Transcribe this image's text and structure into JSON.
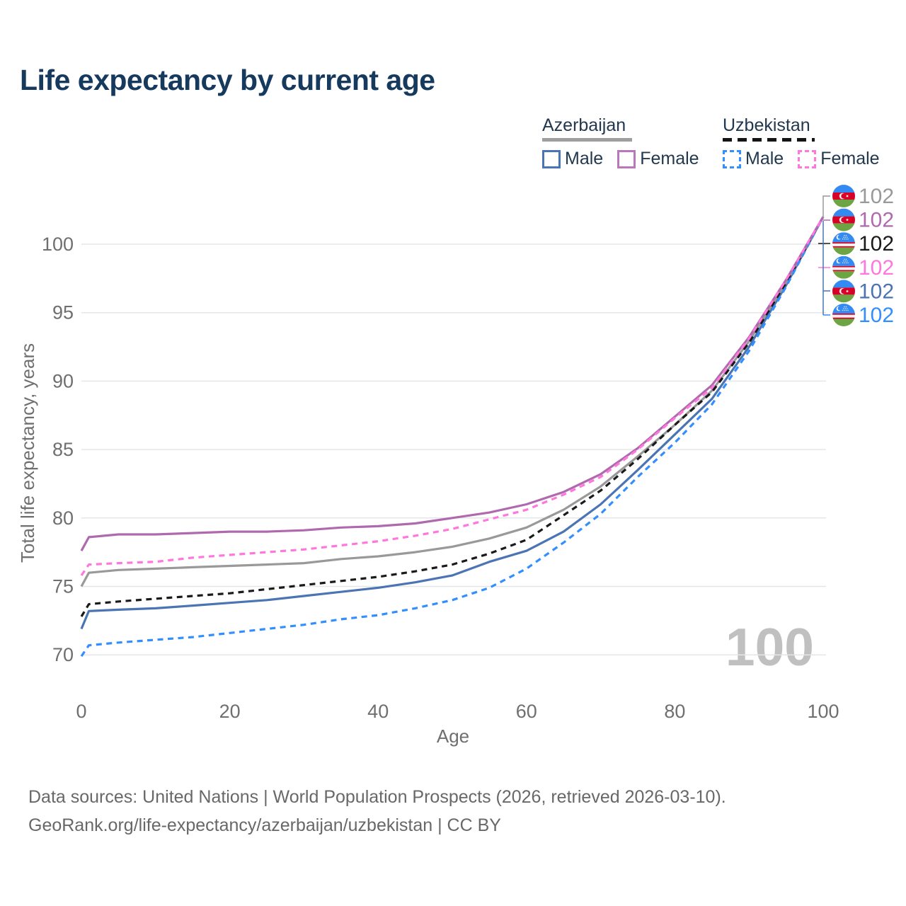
{
  "title": "Life expectancy by current age",
  "legend": {
    "groups": [
      {
        "title": "Azerbaijan",
        "underline_style": "solid",
        "underline_color": "#9e9e9e",
        "items": [
          {
            "label": "Male",
            "color": "#4a74b4",
            "dash": "solid"
          },
          {
            "label": "Female",
            "color": "#bb77bb",
            "dash": "solid"
          }
        ]
      },
      {
        "title": "Uzbekistan",
        "underline_style": "dashed",
        "underline_color": "#141414",
        "items": [
          {
            "label": "Male",
            "color": "#338eff",
            "dash": "dashed"
          },
          {
            "label": "Female",
            "color": "#ff77dd",
            "dash": "dashed"
          }
        ]
      }
    ]
  },
  "chart_data": {
    "type": "line",
    "title": "Life expectancy by current age",
    "xlabel": "Age",
    "ylabel": "Total life expectancy, years",
    "xlim": [
      0,
      100
    ],
    "ylim": [
      68.5,
      103
    ],
    "x_ticks": [
      0,
      20,
      40,
      60,
      80,
      100
    ],
    "y_ticks": [
      70,
      75,
      80,
      85,
      90,
      95,
      100
    ],
    "grid": "horizontal",
    "age_indicator": "100",
    "ages": [
      0,
      1,
      5,
      10,
      15,
      20,
      25,
      30,
      35,
      40,
      45,
      50,
      55,
      60,
      65,
      70,
      75,
      80,
      85,
      90,
      95,
      100
    ],
    "series": [
      {
        "name": "Azerbaijan — Both sexes",
        "country": "az",
        "sex": "both",
        "color": "#999999",
        "dash": "solid",
        "end_label": "102",
        "values": [
          75.0,
          76.0,
          76.2,
          76.3,
          76.4,
          76.5,
          76.6,
          76.7,
          77.0,
          77.2,
          77.5,
          77.9,
          78.5,
          79.3,
          80.6,
          82.3,
          84.5,
          86.8,
          89.3,
          92.9,
          97.2,
          102.0
        ]
      },
      {
        "name": "Azerbaijan — Female",
        "country": "az",
        "sex": "female",
        "color": "#b069ae",
        "dash": "solid",
        "end_label": "102",
        "values": [
          77.6,
          78.6,
          78.8,
          78.8,
          78.9,
          79.0,
          79.0,
          79.1,
          79.3,
          79.4,
          79.6,
          80.0,
          80.4,
          81.0,
          81.9,
          83.2,
          85.1,
          87.4,
          89.7,
          93.2,
          97.4,
          102.0
        ]
      },
      {
        "name": "Uzbekistan — Both sexes",
        "country": "uz",
        "sex": "both",
        "color": "#1a1a1a",
        "dash": "dashed",
        "end_label": "102",
        "values": [
          72.8,
          73.7,
          73.9,
          74.1,
          74.3,
          74.5,
          74.8,
          75.1,
          75.4,
          75.7,
          76.1,
          76.6,
          77.4,
          78.4,
          80.2,
          82.0,
          84.3,
          86.8,
          89.2,
          92.8,
          97.2,
          102.0
        ]
      },
      {
        "name": "Uzbekistan — Female",
        "country": "uz",
        "sex": "female",
        "color": "#ff77dd",
        "dash": "dashed",
        "end_label": "102",
        "values": [
          75.8,
          76.6,
          76.7,
          76.8,
          77.1,
          77.3,
          77.5,
          77.7,
          78.0,
          78.3,
          78.7,
          79.2,
          79.9,
          80.6,
          81.7,
          83.0,
          85.0,
          87.3,
          89.5,
          93.1,
          97.4,
          102.0
        ]
      },
      {
        "name": "Azerbaijan — Male",
        "country": "az",
        "sex": "male",
        "color": "#4a74b4",
        "dash": "solid",
        "end_label": "102",
        "values": [
          71.9,
          73.2,
          73.3,
          73.4,
          73.6,
          73.8,
          74.0,
          74.3,
          74.6,
          74.9,
          75.3,
          75.8,
          76.8,
          77.6,
          79.0,
          81.0,
          83.5,
          86.1,
          88.7,
          92.5,
          97.0,
          102.0
        ]
      },
      {
        "name": "Uzbekistan — Male",
        "country": "uz",
        "sex": "male",
        "color": "#338eff",
        "dash": "dashed",
        "end_label": "102",
        "values": [
          69.9,
          70.7,
          70.9,
          71.1,
          71.3,
          71.6,
          71.9,
          72.2,
          72.6,
          72.9,
          73.4,
          74.0,
          74.9,
          76.3,
          78.2,
          80.3,
          83.0,
          85.5,
          88.3,
          92.2,
          96.9,
          102.0
        ]
      }
    ],
    "flag_colors": {
      "az": {
        "blue": "#338AF3",
        "red": "#D80027",
        "green": "#6DA544",
        "white": "#F0F0F0"
      },
      "uz": {
        "blue": "#338AF3",
        "red": "#D80027",
        "green": "#6DA544",
        "white": "#F0F0F0"
      }
    },
    "axis_text_color": "#6f6f6f",
    "grid_color": "#e6e6e6",
    "watermark_color": "#c0c0c0"
  },
  "footer": {
    "line1": "Data sources: United Nations | World Population Prospects (2026, retrieved 2026-03-10).",
    "line2": "GeoRank.org/life-expectancy/azerbaijan/uzbekistan | CC BY"
  }
}
